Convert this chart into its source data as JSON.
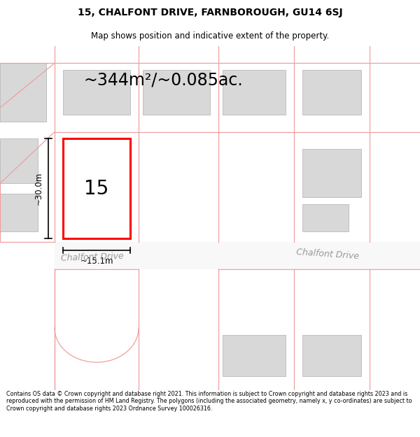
{
  "title_line1": "15, CHALFONT DRIVE, FARNBOROUGH, GU14 6SJ",
  "title_line2": "Map shows position and indicative extent of the property.",
  "area_text": "~344m²/~0.085ac.",
  "property_number": "15",
  "dim_width": "~15.1m",
  "dim_height": "~30.0m",
  "road_label_left": "Chalfont Drive",
  "road_label_right": "Chalfont Drive",
  "footer_text": "Contains OS data © Crown copyright and database right 2021. This information is subject to Crown copyright and database rights 2023 and is reproduced with the permission of HM Land Registry. The polygons (including the associated geometry, namely x, y co-ordinates) are subject to Crown copyright and database rights 2023 Ordnance Survey 100026316.",
  "bg_color": "#ffffff",
  "map_bg": "#f0f0f0",
  "highlight_fill": "#ffffff",
  "highlight_edge": "#ff0000",
  "pink_line_color": "#f0a0a0",
  "building_fill": "#d8d8d8",
  "building_edge": "#c0c0c0",
  "title_fontsize": 10,
  "subtitle_fontsize": 8.5,
  "footer_fontsize": 5.8,
  "area_fontsize": 17,
  "propnum_fontsize": 20,
  "dim_fontsize": 8.5,
  "road_fontsize": 9
}
